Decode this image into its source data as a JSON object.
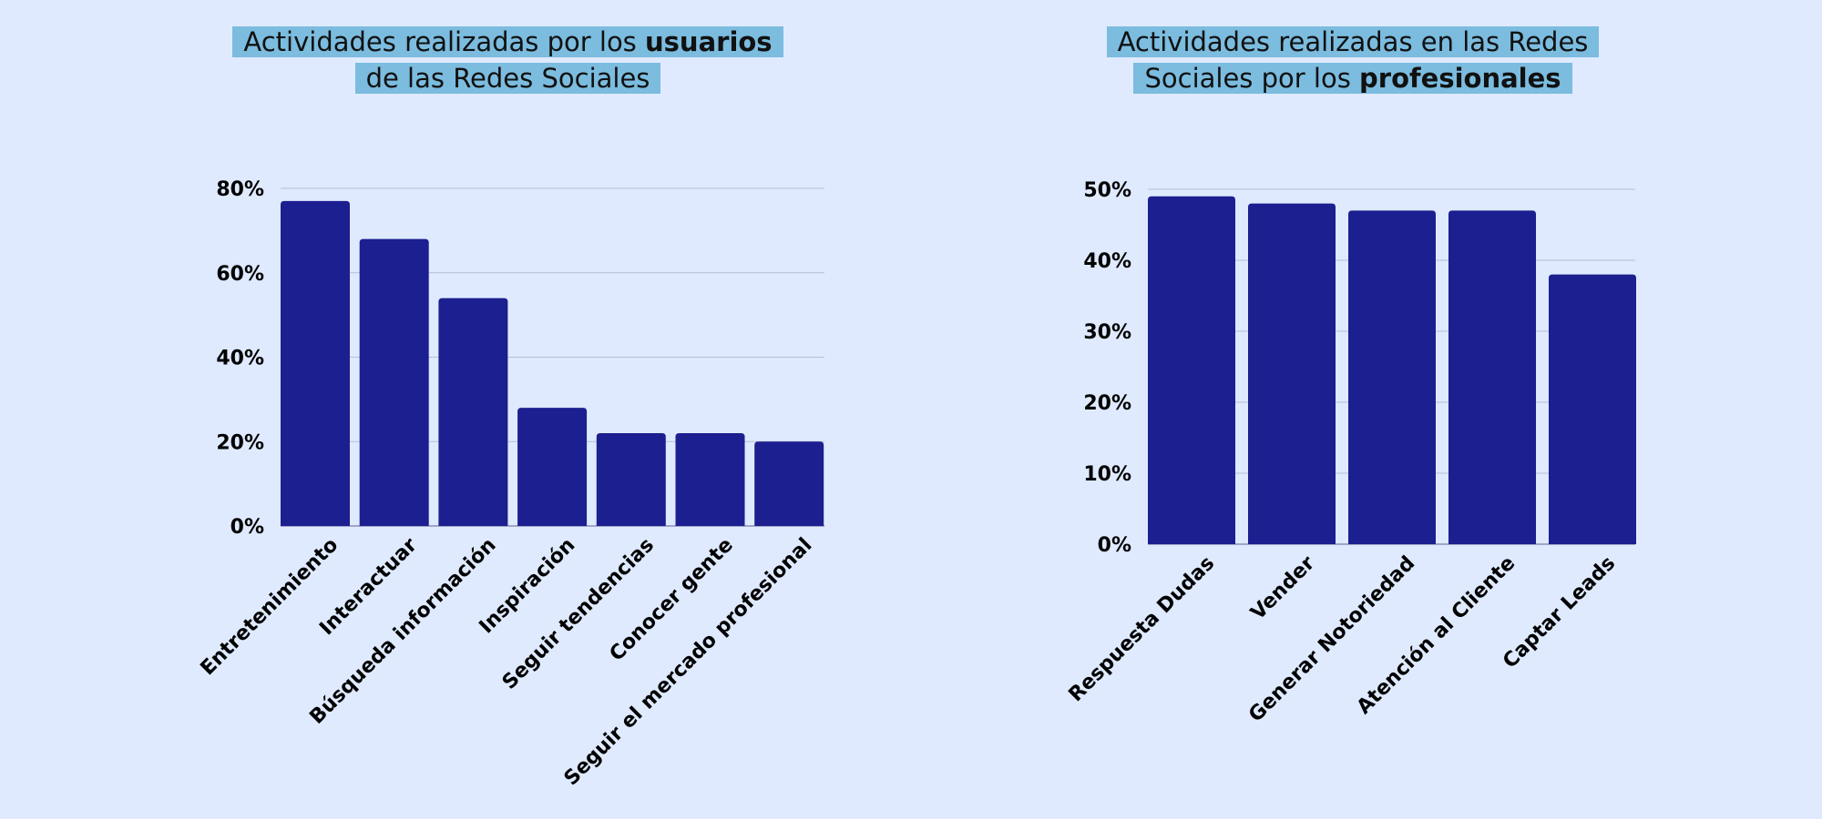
{
  "chart_data": [
    {
      "type": "bar",
      "title_parts": [
        {
          "text": "Actividades realizadas por los ",
          "bold": false
        },
        {
          "text": "usuarios",
          "bold": true
        },
        {
          "text": "\n",
          "bold": false
        },
        {
          "text": "de las Redes Sociales",
          "bold": false
        }
      ],
      "categories": [
        "Entretenimiento",
        "Interactuar",
        "Búsqueda información",
        "Inspiración",
        "Seguir tendencias",
        "Conocer gente",
        "Seguir el mercado profesional"
      ],
      "values": [
        77,
        68,
        54,
        28,
        22,
        22,
        20
      ],
      "ylim": [
        0,
        80
      ],
      "yticks": [
        0,
        20,
        40,
        60,
        80
      ],
      "ytick_labels": [
        "0%",
        "20%",
        "40%",
        "60%",
        "80%"
      ],
      "grid": true,
      "bar_color": "#1c1f8f"
    },
    {
      "type": "bar",
      "title_parts": [
        {
          "text": "Actividades realizadas en las Redes",
          "bold": false
        },
        {
          "text": "\n",
          "bold": false
        },
        {
          "text": "Sociales por los ",
          "bold": false
        },
        {
          "text": "profesionales",
          "bold": true
        }
      ],
      "categories": [
        "Respuesta Dudas",
        "Vender",
        "Generar Notoriedad",
        "Atención al Cliente",
        "Captar Leads"
      ],
      "values": [
        49,
        48,
        47,
        47,
        38
      ],
      "ylim": [
        0,
        50
      ],
      "yticks": [
        0,
        10,
        20,
        30,
        40,
        50
      ],
      "ytick_labels": [
        "0%",
        "10%",
        "20%",
        "30%",
        "40%",
        "50%"
      ],
      "grid": true,
      "bar_color": "#1c1f8f"
    }
  ]
}
